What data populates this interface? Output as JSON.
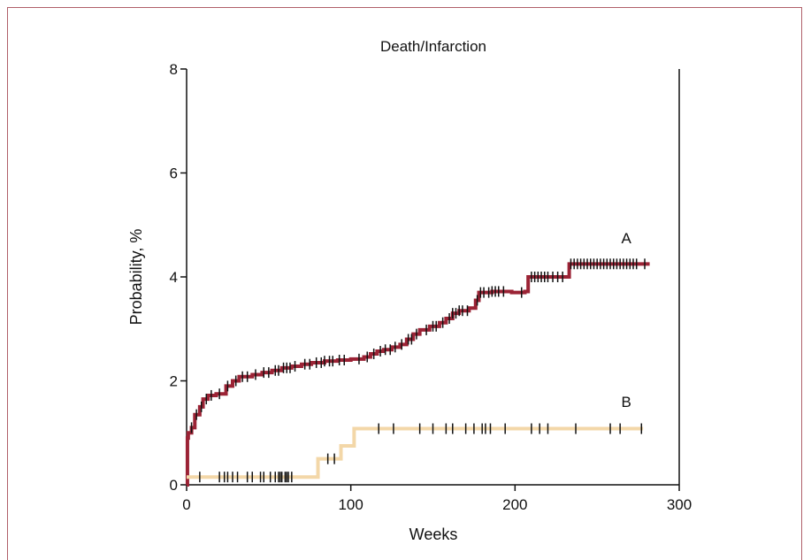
{
  "chart_data": {
    "type": "line",
    "title": "Death/Infarction",
    "xlabel": "Weeks",
    "ylabel": "Probability, %",
    "xlim": [
      0,
      300
    ],
    "ylim": [
      0,
      8
    ],
    "xticks": [
      "0",
      "100",
      "200",
      "300"
    ],
    "yticks": [
      "0",
      "2",
      "4",
      "6",
      "8"
    ],
    "grid": false,
    "colors": {
      "A": "#9b2335",
      "B": "#f3d7a8",
      "censor": "#111111",
      "axis": "#111111"
    },
    "series": [
      {
        "name": "A",
        "label_pos": [
          257,
          4.75
        ],
        "points": [
          [
            0,
            0
          ],
          [
            0.5,
            0.9
          ],
          [
            1,
            1.0
          ],
          [
            3,
            1.1
          ],
          [
            5,
            1.35
          ],
          [
            8,
            1.5
          ],
          [
            10,
            1.65
          ],
          [
            13,
            1.72
          ],
          [
            18,
            1.75
          ],
          [
            24,
            1.9
          ],
          [
            28,
            2.0
          ],
          [
            32,
            2.08
          ],
          [
            40,
            2.12
          ],
          [
            46,
            2.16
          ],
          [
            52,
            2.2
          ],
          [
            58,
            2.25
          ],
          [
            64,
            2.28
          ],
          [
            70,
            2.32
          ],
          [
            76,
            2.35
          ],
          [
            84,
            2.38
          ],
          [
            92,
            2.4
          ],
          [
            100,
            2.42
          ],
          [
            108,
            2.46
          ],
          [
            112,
            2.52
          ],
          [
            116,
            2.57
          ],
          [
            120,
            2.6
          ],
          [
            125,
            2.65
          ],
          [
            130,
            2.7
          ],
          [
            134,
            2.8
          ],
          [
            138,
            2.9
          ],
          [
            142,
            2.98
          ],
          [
            148,
            3.05
          ],
          [
            154,
            3.12
          ],
          [
            158,
            3.2
          ],
          [
            162,
            3.3
          ],
          [
            166,
            3.35
          ],
          [
            172,
            3.4
          ],
          [
            176,
            3.55
          ],
          [
            178,
            3.7
          ],
          [
            186,
            3.72
          ],
          [
            198,
            3.7
          ],
          [
            206,
            3.72
          ],
          [
            208,
            4.0
          ],
          [
            218,
            4.0
          ],
          [
            230,
            4.0
          ],
          [
            233,
            4.25
          ],
          [
            250,
            4.25
          ],
          [
            282,
            4.25
          ]
        ],
        "censor_x": [
          3,
          6,
          9,
          12,
          15,
          20,
          25,
          30,
          34,
          37,
          42,
          47,
          50,
          54,
          56,
          59,
          61,
          63,
          66,
          72,
          75,
          79,
          82,
          84,
          87,
          89,
          93,
          96,
          105,
          110,
          114,
          118,
          121,
          124,
          127,
          131,
          135,
          137,
          140,
          146,
          150,
          152,
          156,
          160,
          162,
          164,
          166,
          168,
          171,
          177,
          179,
          181,
          184,
          186,
          188,
          190,
          193,
          204,
          210,
          212,
          214,
          216,
          218,
          220,
          223,
          226,
          229,
          234,
          236,
          238,
          240,
          242,
          244,
          246,
          248,
          250,
          252,
          254,
          256,
          258,
          260,
          262,
          264,
          266,
          268,
          270,
          272,
          274,
          279
        ]
      },
      {
        "name": "B",
        "label_pos": [
          257,
          1.6
        ],
        "points": [
          [
            0,
            0.15
          ],
          [
            80,
            0.15
          ],
          [
            80,
            0.5
          ],
          [
            94,
            0.5
          ],
          [
            94,
            0.75
          ],
          [
            102,
            0.75
          ],
          [
            102,
            1.08
          ],
          [
            278,
            1.08
          ]
        ],
        "censor_x": [
          8,
          20,
          23,
          25,
          28,
          31,
          37,
          40,
          45,
          47,
          51,
          54,
          56,
          57,
          58,
          60,
          61,
          62,
          64,
          86,
          90,
          117,
          126,
          142,
          150,
          158,
          162,
          170,
          175,
          180,
          182,
          185,
          194,
          210,
          215,
          220,
          237,
          258,
          264,
          277
        ]
      }
    ]
  }
}
